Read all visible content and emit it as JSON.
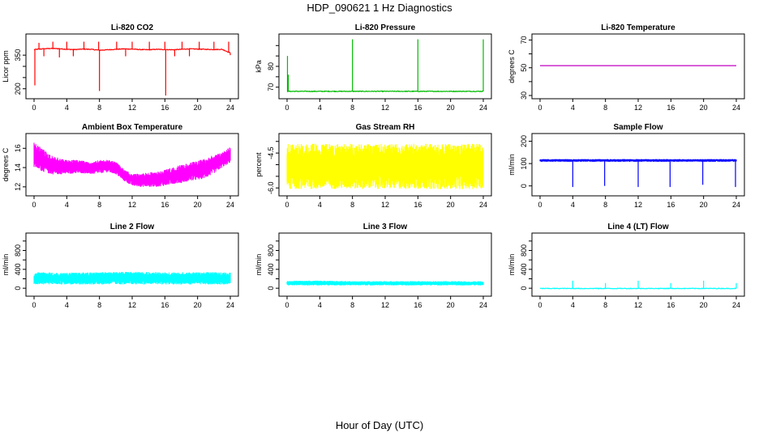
{
  "figure": {
    "title": "HDP_090621  1 Hz Diagnostics",
    "xlabel": "Hour of Day (UTC)"
  },
  "chart_data": [
    {
      "type": "line",
      "title": "Li-820 CO2",
      "ylabel": "Licor ppm",
      "color": "#ff0000",
      "xlim": [
        0,
        24
      ],
      "ylim": [
        170,
        430
      ],
      "xticks": [
        0,
        4,
        8,
        12,
        16,
        20,
        24
      ],
      "yticks": [
        200,
        250,
        300,
        350
      ],
      "ytick_labels": [
        "200",
        "",
        "",
        "350"
      ],
      "series": [
        {
          "x": [
            0,
            1,
            2,
            3,
            4,
            5,
            6,
            7,
            8,
            9,
            10,
            11,
            12,
            13,
            14,
            15,
            16,
            17,
            18,
            19,
            20,
            21,
            22,
            23,
            24
          ],
          "y": [
            375,
            378,
            380,
            379,
            376,
            375,
            377,
            376,
            372,
            374,
            376,
            378,
            377,
            375,
            374,
            376,
            375,
            374,
            376,
            378,
            377,
            376,
            375,
            376,
            360
          ]
        }
      ],
      "spikes": [
        {
          "x": 0.1,
          "y": 215
        },
        {
          "x": 0.6,
          "y": 405
        },
        {
          "x": 1.2,
          "y": 345
        },
        {
          "x": 2.3,
          "y": 410
        },
        {
          "x": 3.1,
          "y": 340
        },
        {
          "x": 4.0,
          "y": 410
        },
        {
          "x": 4.8,
          "y": 345
        },
        {
          "x": 6.1,
          "y": 410
        },
        {
          "x": 7.9,
          "y": 410
        },
        {
          "x": 8.0,
          "y": 190
        },
        {
          "x": 10.1,
          "y": 410
        },
        {
          "x": 11.2,
          "y": 345
        },
        {
          "x": 12.0,
          "y": 410
        },
        {
          "x": 14.1,
          "y": 410
        },
        {
          "x": 16.0,
          "y": 410
        },
        {
          "x": 16.1,
          "y": 170
        },
        {
          "x": 17.2,
          "y": 345
        },
        {
          "x": 18.1,
          "y": 410
        },
        {
          "x": 19.0,
          "y": 345
        },
        {
          "x": 20.2,
          "y": 410
        },
        {
          "x": 22.0,
          "y": 410
        },
        {
          "x": 23.8,
          "y": 410
        },
        {
          "x": 24.0,
          "y": 350
        }
      ]
    },
    {
      "type": "line",
      "title": "Li-820 Pressure",
      "ylabel": "kPa",
      "color": "#00bb00",
      "xlim": [
        0,
        24
      ],
      "ylim": [
        66,
        94
      ],
      "xticks": [
        0,
        4,
        8,
        12,
        16,
        20,
        24
      ],
      "yticks": [
        70,
        75,
        80,
        85,
        90
      ],
      "ytick_labels": [
        "70",
        "",
        "80",
        "",
        ""
      ],
      "series": [
        {
          "x": [
            0,
            2,
            4,
            6,
            8,
            10,
            12,
            14,
            16,
            18,
            20,
            22,
            24
          ],
          "y": [
            68,
            68,
            68,
            68,
            68,
            68,
            68,
            68,
            68,
            68,
            68,
            68,
            68
          ]
        }
      ],
      "spikes": [
        {
          "x": 0.05,
          "y": 85
        },
        {
          "x": 0.15,
          "y": 76
        },
        {
          "x": 8.0,
          "y": 93
        },
        {
          "x": 16.0,
          "y": 93
        },
        {
          "x": 24.0,
          "y": 93
        }
      ]
    },
    {
      "type": "line",
      "title": "Li-820 Temperature",
      "ylabel": "degrees C",
      "color": "#c000c0",
      "xlim": [
        0,
        24
      ],
      "ylim": [
        30,
        72
      ],
      "xticks": [
        0,
        4,
        8,
        12,
        16,
        20,
        24
      ],
      "yticks": [
        30,
        40,
        50,
        60,
        70
      ],
      "ytick_labels": [
        "30",
        "",
        "50",
        "",
        "70"
      ],
      "series": [
        {
          "x": [
            0,
            24
          ],
          "y": [
            51.5,
            51.5
          ]
        }
      ]
    },
    {
      "type": "area",
      "title": "Ambient Box Temperature",
      "ylabel": "degrees C",
      "color": "#ff00ff",
      "xlim": [
        0,
        24
      ],
      "ylim": [
        11.4,
        17.2
      ],
      "xticks": [
        0,
        4,
        8,
        12,
        16,
        20,
        24
      ],
      "yticks": [
        12,
        14,
        16
      ],
      "ytick_labels": [
        "12",
        "14",
        "16"
      ],
      "series": [
        {
          "x": [
            0,
            1,
            2,
            3,
            4,
            5,
            6,
            7,
            8,
            9,
            10,
            11,
            12,
            13,
            14,
            15,
            16,
            17,
            18,
            19,
            20,
            21,
            22,
            23,
            24
          ],
          "y_low": [
            14.0,
            13.6,
            13.3,
            13.3,
            13.3,
            13.4,
            13.4,
            13.3,
            13.4,
            13.5,
            13.3,
            12.6,
            12.1,
            12.0,
            12.0,
            12.0,
            12.1,
            12.3,
            12.4,
            12.6,
            12.7,
            12.9,
            13.4,
            14.0,
            14.5
          ],
          "y_high": [
            16.6,
            16.0,
            15.3,
            15.0,
            14.8,
            14.8,
            14.7,
            14.5,
            14.8,
            14.8,
            14.6,
            13.8,
            13.3,
            13.4,
            13.5,
            13.6,
            13.8,
            14.0,
            14.3,
            14.5,
            14.7,
            15.0,
            15.3,
            15.6,
            16.2
          ]
        }
      ]
    },
    {
      "type": "area",
      "title": "Gas Stream RH",
      "ylabel": "percent",
      "color": "#ffff00",
      "xlim": [
        0,
        24
      ],
      "ylim": [
        -6.2,
        -3.8
      ],
      "xticks": [
        0,
        4,
        8,
        12,
        16,
        20,
        24
      ],
      "yticks": [
        -6.0,
        -5.5,
        -5.0,
        -4.5,
        -4.0
      ],
      "ytick_labels": [
        "-6.0",
        "",
        "",
        "-4.5",
        ""
      ],
      "series": [
        {
          "x": [
            0,
            4,
            8,
            12,
            16,
            20,
            24
          ],
          "y_low": [
            -6.05,
            -6.05,
            -6.05,
            -6.05,
            -6.05,
            -6.05,
            -6.05
          ],
          "y_high": [
            -4.1,
            -4.1,
            -4.1,
            -4.1,
            -4.1,
            -4.1,
            -4.1
          ]
        }
      ]
    },
    {
      "type": "line",
      "title": "Sample Flow",
      "ylabel": "ml/min",
      "color": "#0000ff",
      "xlim": [
        0,
        24
      ],
      "ylim": [
        -30,
        220
      ],
      "xticks": [
        0,
        4,
        8,
        12,
        16,
        20,
        24
      ],
      "yticks": [
        0,
        100,
        200
      ],
      "ytick_labels": [
        "0",
        "100",
        "200"
      ],
      "series": [
        {
          "x": [
            0,
            4,
            8,
            12,
            16,
            20,
            24
          ],
          "y_low": [
            108,
            108,
            108,
            108,
            108,
            108,
            108
          ],
          "y_high": [
            120,
            120,
            120,
            120,
            120,
            120,
            120
          ]
        }
      ],
      "spikes": [
        {
          "x": 4.0,
          "y": -5
        },
        {
          "x": 7.9,
          "y": 0
        },
        {
          "x": 12.0,
          "y": -5
        },
        {
          "x": 15.9,
          "y": -5
        },
        {
          "x": 19.9,
          "y": 5
        },
        {
          "x": 23.9,
          "y": -5
        }
      ]
    },
    {
      "type": "area",
      "title": "Line 2 Flow",
      "ylabel": "ml/min",
      "color": "#00ffff",
      "xlim": [
        0,
        24
      ],
      "ylim": [
        -100,
        1100
      ],
      "xticks": [
        0,
        4,
        8,
        12,
        16,
        20,
        24
      ],
      "yticks": [
        0,
        200,
        400,
        600,
        800,
        1000
      ],
      "ytick_labels": [
        "0",
        "",
        "400",
        "",
        "800",
        ""
      ],
      "series": [
        {
          "x": [
            0,
            4,
            8,
            12,
            16,
            20,
            24
          ],
          "y_low": [
            80,
            80,
            80,
            80,
            80,
            80,
            80
          ],
          "y_high": [
            340,
            330,
            340,
            350,
            340,
            340,
            340
          ]
        }
      ]
    },
    {
      "type": "area",
      "title": "Line 3 Flow",
      "ylabel": "ml/min",
      "color": "#00ffff",
      "xlim": [
        0,
        24
      ],
      "ylim": [
        -100,
        1100
      ],
      "xticks": [
        0,
        4,
        8,
        12,
        16,
        20,
        24
      ],
      "yticks": [
        0,
        200,
        400,
        600,
        800,
        1000
      ],
      "ytick_labels": [
        "0",
        "",
        "400",
        "",
        "800",
        ""
      ],
      "series": [
        {
          "x": [
            0,
            4,
            8,
            12,
            16,
            20,
            24
          ],
          "y_low": [
            60,
            60,
            60,
            60,
            60,
            60,
            60
          ],
          "y_high": [
            160,
            160,
            150,
            150,
            150,
            150,
            150
          ]
        }
      ]
    },
    {
      "type": "line",
      "title": "Line 4 (LT) Flow",
      "ylabel": "ml/min",
      "color": "#00ffff",
      "xlim": [
        0,
        24
      ],
      "ylim": [
        -100,
        1100
      ],
      "xticks": [
        0,
        4,
        8,
        12,
        16,
        20,
        24
      ],
      "yticks": [
        0,
        200,
        400,
        600,
        800,
        1000
      ],
      "ytick_labels": [
        "0",
        "",
        "400",
        "",
        "800",
        ""
      ],
      "series": [
        {
          "x": [
            0,
            4,
            8,
            12,
            16,
            20,
            24
          ],
          "y": [
            -5,
            -5,
            -5,
            -5,
            -5,
            -5,
            -5
          ]
        }
      ],
      "spikes": [
        {
          "x": 4.0,
          "y": 160
        },
        {
          "x": 8.0,
          "y": 110
        },
        {
          "x": 12.0,
          "y": 160
        },
        {
          "x": 16.0,
          "y": 110
        },
        {
          "x": 20.0,
          "y": 160
        },
        {
          "x": 24.0,
          "y": 110
        }
      ]
    }
  ]
}
